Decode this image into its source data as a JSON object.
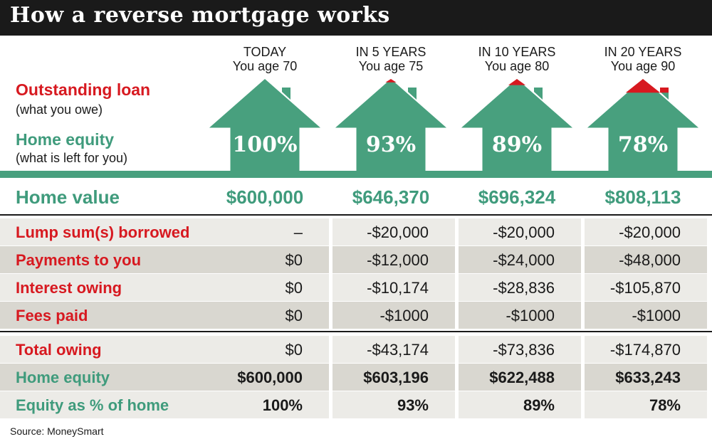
{
  "title": "How a reverse mortgage works",
  "columns": [
    {
      "line1": "TODAY",
      "line2": "You age 70"
    },
    {
      "line1": "IN 5 YEARS",
      "line2": "You age 75"
    },
    {
      "line1": "IN 10 YEARS",
      "line2": "You age 80"
    },
    {
      "line1": "IN 20 YEARS",
      "line2": "You age 90"
    }
  ],
  "legend": {
    "loan_label": "Outstanding loan",
    "loan_sub": "(what you owe)",
    "equity_label": "Home equity",
    "equity_sub": "(what is left for you)"
  },
  "colors": {
    "loan": "#d71920",
    "equity": "#48a07e",
    "header_bg": "#1a1a1a",
    "row_shade": "#d9d7d0",
    "row_light": "#ecebe7"
  },
  "chart_data": {
    "type": "table",
    "house_equity_percent": [
      100,
      93,
      89,
      78
    ],
    "house_labels": [
      "100%",
      "93%",
      "89%",
      "78%"
    ],
    "home_value_label": "Home value",
    "home_values": [
      "$600,000",
      "$646,370",
      "$696,324",
      "$808,113"
    ],
    "rows_top": [
      {
        "label": "Lump sum(s) borrowed",
        "color": "red",
        "values": [
          "–",
          "-$20,000",
          "-$20,000",
          "-$20,000"
        ]
      },
      {
        "label": "Payments to you",
        "color": "red",
        "values": [
          "$0",
          "-$12,000",
          "-$24,000",
          "-$48,000"
        ]
      },
      {
        "label": "Interest owing",
        "color": "red",
        "values": [
          "$0",
          "-$10,174",
          "-$28,836",
          "-$105,870"
        ]
      },
      {
        "label": "Fees paid",
        "color": "red",
        "values": [
          "$0",
          "-$1000",
          "-$1000",
          "-$1000"
        ]
      }
    ],
    "rows_bottom": [
      {
        "label": "Total owing",
        "color": "red",
        "bold": false,
        "values": [
          "$0",
          "-$43,174",
          "-$73,836",
          "-$174,870"
        ]
      },
      {
        "label": "Home equity",
        "color": "green",
        "bold": true,
        "values": [
          "$600,000",
          "$603,196",
          "$622,488",
          "$633,243"
        ]
      },
      {
        "label": "Equity as % of home",
        "color": "green",
        "bold": true,
        "values": [
          "100%",
          "93%",
          "89%",
          "78%"
        ]
      }
    ]
  },
  "source": "Source: MoneySmart"
}
